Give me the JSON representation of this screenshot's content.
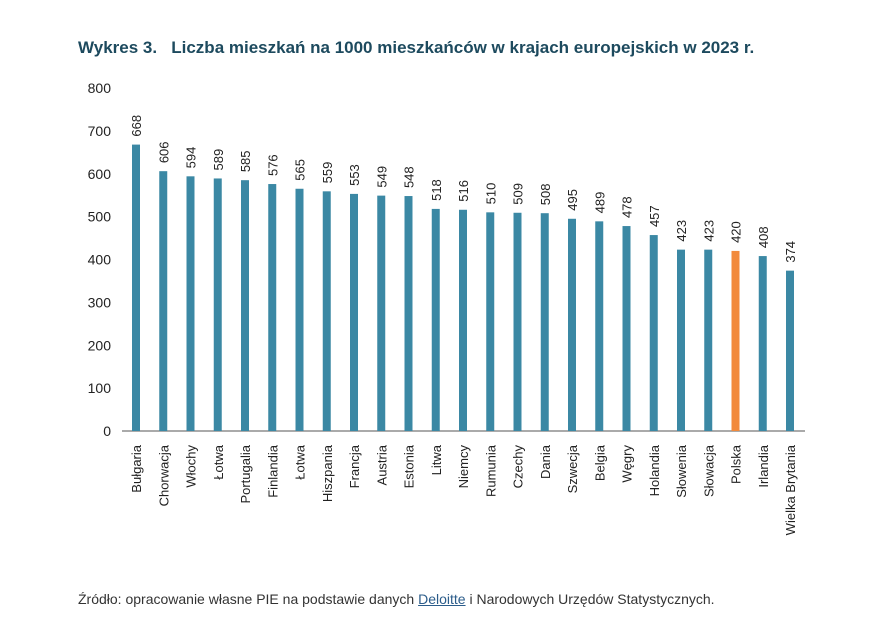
{
  "title": "Wykres 3.   Liczba mieszkań na 1000 mieszkańców w krajach europejskich w 2023 r.",
  "source": {
    "prefix": "Źródło: opracowanie własne PIE na podstawie danych ",
    "link": "Deloitte",
    "suffix": " i Narodowych Urzędów Statystycznych."
  },
  "chart_data": {
    "type": "bar",
    "title": "Wykres 3.   Liczba mieszkań na 1000 mieszkańców w krajach europejskich w 2023 r.",
    "categories": [
      "Bułgaria",
      "Chorwacja",
      "Włochy",
      "Łotwa",
      "Portugalia",
      "Finlandia",
      "Łotwa",
      "Hiszpania",
      "Francja",
      "Austria",
      "Estonia",
      "Litwa",
      "Niemcy",
      "Rumunia",
      "Czechy",
      "Dania",
      "Szwecja",
      "Belgia",
      "Węgry",
      "Holandia",
      "Słowenia",
      "Słowacja",
      "Polska",
      "Irlandia",
      "Wielka Brytania"
    ],
    "values": [
      668,
      606,
      594,
      589,
      585,
      576,
      565,
      559,
      553,
      549,
      548,
      518,
      516,
      510,
      509,
      508,
      495,
      489,
      478,
      457,
      423,
      423,
      420,
      408,
      374
    ],
    "ylim": [
      0,
      800
    ],
    "yticks": [
      0,
      100,
      200,
      300,
      400,
      500,
      600,
      700,
      800
    ],
    "grid": false,
    "colors": {
      "default": "#3b88a4",
      "highlight": "#f28a3c",
      "highlight_category": "Polska"
    }
  }
}
